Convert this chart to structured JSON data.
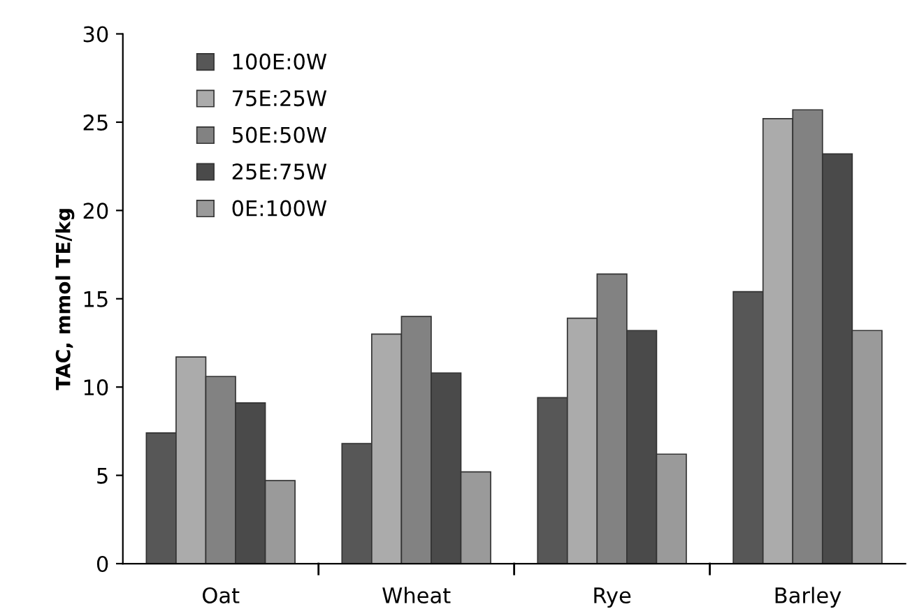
{
  "chart_data": {
    "type": "bar",
    "ylabel": "TAC, mmol TE/kg",
    "categories": [
      "Oat",
      "Wheat",
      "Rye",
      "Barley"
    ],
    "series": [
      {
        "name": "100E:0W",
        "color": "#575757",
        "values": [
          7.4,
          6.8,
          9.4,
          15.4
        ]
      },
      {
        "name": "75E:25W",
        "color": "#ababab",
        "values": [
          11.7,
          13.0,
          13.9,
          25.2
        ]
      },
      {
        "name": "50E:50W",
        "color": "#828282",
        "values": [
          10.6,
          14.0,
          16.4,
          25.7
        ]
      },
      {
        "name": "25E:75W",
        "color": "#4a4a4a",
        "values": [
          9.1,
          10.8,
          13.2,
          23.2
        ]
      },
      {
        "name": "0E:100W",
        "color": "#9a9a9a",
        "values": [
          4.7,
          5.2,
          6.2,
          13.2
        ]
      }
    ],
    "ylim": [
      0,
      30
    ],
    "yticks": [
      0,
      5,
      10,
      15,
      20,
      25,
      30
    ],
    "grid": false,
    "legend": "top left"
  }
}
